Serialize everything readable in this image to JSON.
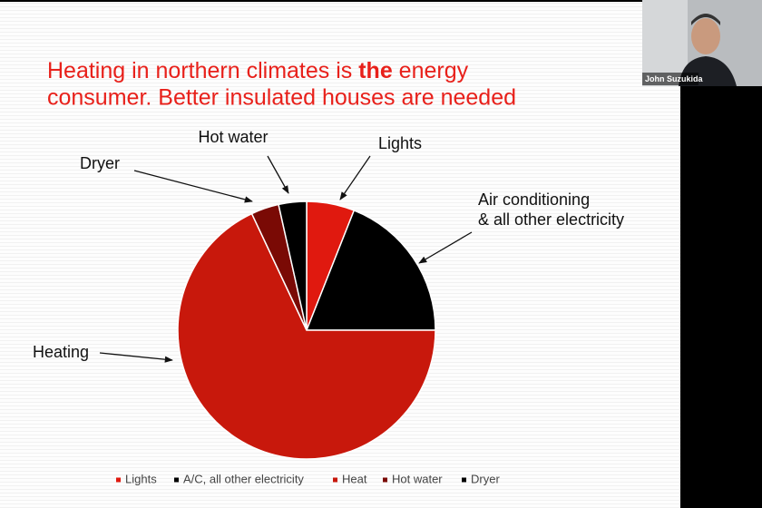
{
  "chart_data": {
    "type": "pie",
    "title": [
      "Heating in northern climates is ",
      "the",
      " energy",
      "consumer. Better insulated houses are needed"
    ],
    "categories": [
      "Lights",
      "A/C, all other electricity",
      "Heat",
      "Hot water",
      "Dryer"
    ],
    "values": [
      6,
      19,
      68,
      3.5,
      3.5
    ],
    "colors": [
      "#e0190f",
      "#000000",
      "#c8180c",
      "#7a0a05",
      "#000000"
    ],
    "annotations": [
      {
        "lines": [
          "Lights"
        ]
      },
      {
        "lines": [
          "Air conditioning",
          "& all other electricity"
        ]
      },
      {
        "lines": [
          "Hot water"
        ]
      },
      {
        "lines": [
          "Dryer"
        ]
      },
      {
        "lines": [
          "Heating"
        ]
      }
    ],
    "legend": "bottom"
  },
  "participant": {
    "name": "John Suzukida"
  }
}
